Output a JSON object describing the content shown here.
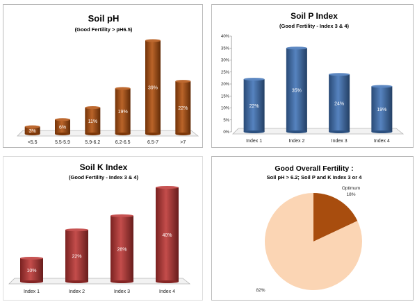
{
  "chart_data": [
    {
      "type": "bar",
      "title": "Soil pH",
      "subtitle": "(Good Fertility > pH6.5)",
      "categories": [
        "<5.5",
        "5.5-5.9",
        "5.9-6.2",
        "6.2-6.5",
        "6.5-7",
        ">7"
      ],
      "values": [
        3,
        6,
        11,
        19,
        39,
        22
      ],
      "data_labels": [
        "3%",
        "6%",
        "11%",
        "19%",
        "39%",
        "22%"
      ],
      "ylim": [
        0,
        40
      ],
      "y_axis_visible": false,
      "grid": false,
      "legend": "none",
      "color": "#b14f0c"
    },
    {
      "type": "bar",
      "title": "Soil P Index",
      "subtitle": "(Good Fertility - Index 3 & 4)",
      "categories": [
        "Index 1",
        "Index 2",
        "Index 3",
        "Index 4"
      ],
      "values": [
        22,
        35,
        24,
        19
      ],
      "data_labels": [
        "22%",
        "35%",
        "24%",
        "19%"
      ],
      "ylim": [
        0,
        40
      ],
      "y_ticks": [
        "0%",
        "5%",
        "10%",
        "15%",
        "20%",
        "25%",
        "30%",
        "35%",
        "40%"
      ],
      "y_axis_visible": true,
      "grid": false,
      "legend": "none",
      "color": "#3f72b6"
    },
    {
      "type": "bar",
      "title": "Soil K Index",
      "subtitle": "(Good Fertility - Index 3 & 4)",
      "categories": [
        "Index 1",
        "Index 2",
        "Index 3",
        "Index 4"
      ],
      "values": [
        10,
        22,
        28,
        40
      ],
      "data_labels": [
        "10%",
        "22%",
        "28%",
        "40%"
      ],
      "ylim": [
        0,
        40
      ],
      "y_axis_visible": false,
      "grid": false,
      "legend": "none",
      "color": "#bc3533"
    },
    {
      "type": "pie",
      "title": "Good Overall Fertility :",
      "subtitle": "Soil pH > 6.2; Soil P and K Index 3 or 4",
      "slices": [
        {
          "label": "Optimum",
          "value": 18,
          "value_label": "18%",
          "color": "#a84d0e"
        },
        {
          "label": "",
          "value": 82,
          "value_label": "82%",
          "color": "#fbd5b4"
        }
      ],
      "legend": "none"
    }
  ]
}
